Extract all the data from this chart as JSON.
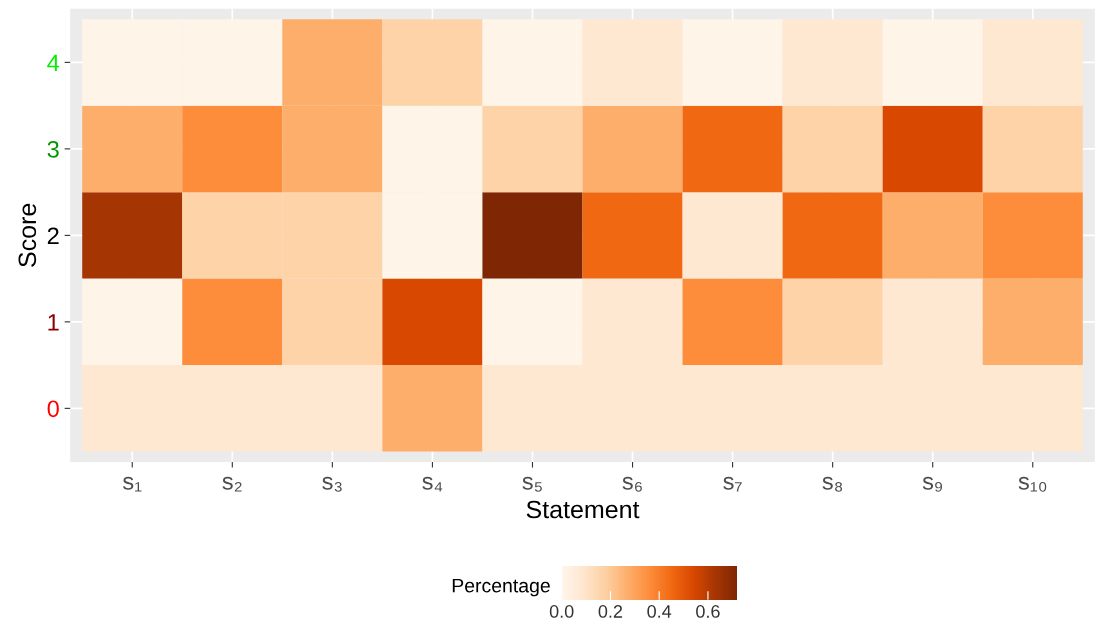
{
  "chart_data": {
    "type": "heatmap",
    "xlabel": "Statement",
    "ylabel": "Score",
    "clabel": "Percentage",
    "categories": [
      "s₁",
      "s₂",
      "s₃",
      "s₄",
      "s₅",
      "s₆",
      "s₇",
      "s₈",
      "s₉",
      "s₁₀"
    ],
    "y_categories": [
      "4",
      "3",
      "2",
      "1",
      "0"
    ],
    "cells": [
      [
        0.01,
        0.01,
        0.27,
        0.17,
        0.01,
        0.08,
        0.01,
        0.08,
        0.01,
        0.08
      ],
      [
        0.27,
        0.36,
        0.27,
        0.01,
        0.17,
        0.27,
        0.45,
        0.17,
        0.54,
        0.17
      ],
      [
        0.63,
        0.17,
        0.17,
        0.01,
        0.72,
        0.45,
        0.08,
        0.45,
        0.27,
        0.36
      ],
      [
        0.01,
        0.36,
        0.17,
        0.54,
        0.01,
        0.08,
        0.36,
        0.17,
        0.08,
        0.27
      ],
      [
        0.08,
        0.08,
        0.08,
        0.27,
        0.08,
        0.08,
        0.08,
        0.08,
        0.08,
        0.08
      ]
    ],
    "colors": [
      "#fff5eb",
      "#fee6ce",
      "#fdd0a2",
      "#fdae6b",
      "#fd8d3c",
      "#f16913",
      "#d94801",
      "#a63603",
      "#7f2704"
    ],
    "clim": [
      0,
      0.72
    ],
    "cticks": [
      {
        "value": 0,
        "label": "0.0"
      },
      0.2,
      0.4,
      0.6
    ],
    "grid": true
  }
}
